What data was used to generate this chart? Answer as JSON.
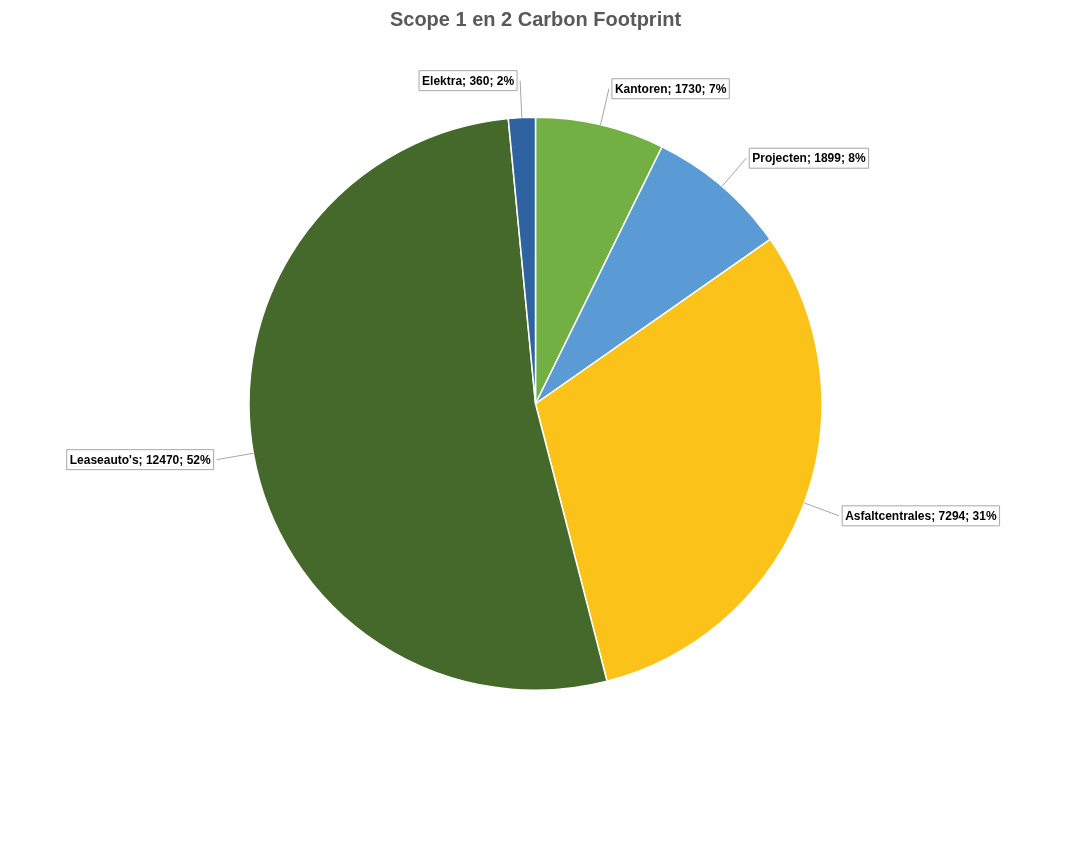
{
  "chart_data": {
    "type": "pie",
    "title": "Scope 1 en 2 Carbon Footprint",
    "categories": [
      "Kantoren",
      "Projecten",
      "Asfaltcentrales",
      "Leaseauto's",
      "Elektra"
    ],
    "values": [
      1730,
      1899,
      7294,
      12470,
      360
    ],
    "value_labels": [
      "1730; 7%",
      "1899; 8%",
      "7294; 31%",
      "12470; 52%",
      "360; 2%"
    ],
    "colors": [
      "#72b043",
      "#5b9bd5",
      "#fbc21a",
      "#44692b",
      "#2e62a0"
    ]
  }
}
